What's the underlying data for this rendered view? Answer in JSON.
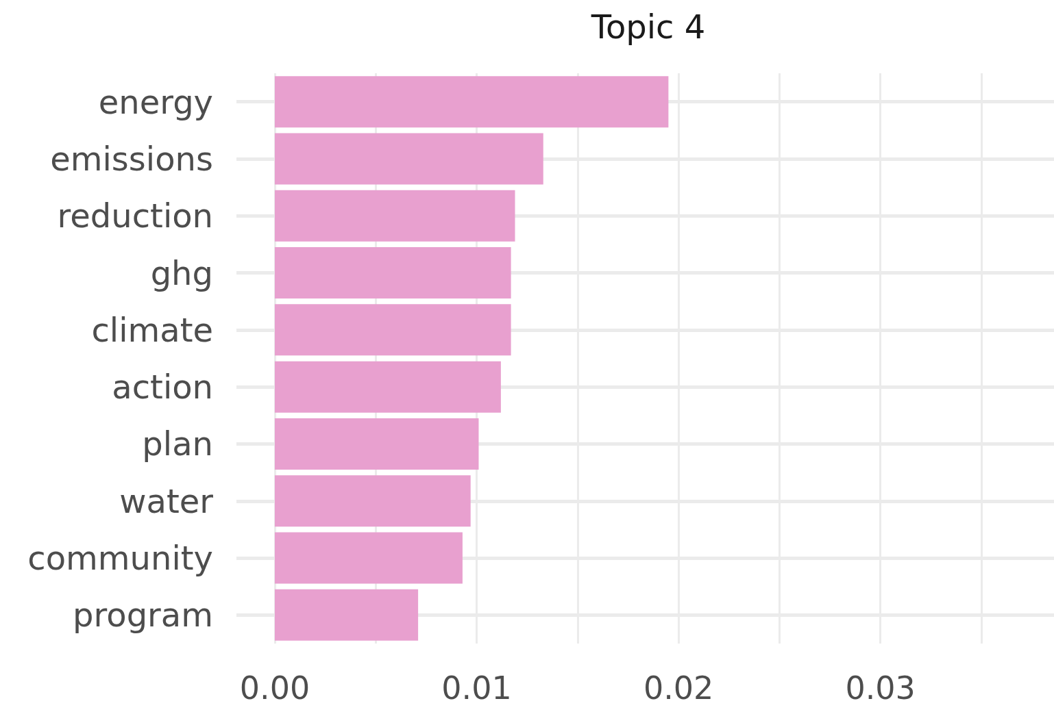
{
  "chart_data": {
    "type": "bar",
    "orientation": "horizontal",
    "title": "Topic 4",
    "categories": [
      "energy",
      "emissions",
      "reduction",
      "ghg",
      "climate",
      "action",
      "plan",
      "water",
      "community",
      "program"
    ],
    "values": [
      0.0195,
      0.0133,
      0.0119,
      0.0117,
      0.0117,
      0.0112,
      0.0101,
      0.0097,
      0.0093,
      0.0071
    ],
    "color": "#e8a0cf",
    "xlim": [
      -0.0019,
      0.0386
    ],
    "xticks": [
      {
        "value": 0,
        "label": "0.00"
      },
      {
        "value": 0.005,
        "label": null
      },
      {
        "value": 0.01,
        "label": "0.01"
      },
      {
        "value": 0.015,
        "label": null
      },
      {
        "value": 0.02,
        "label": "0.02"
      },
      {
        "value": 0.025,
        "label": null
      },
      {
        "value": 0.03,
        "label": "0.03"
      },
      {
        "value": 0.035,
        "label": null
      }
    ],
    "grid": true
  }
}
